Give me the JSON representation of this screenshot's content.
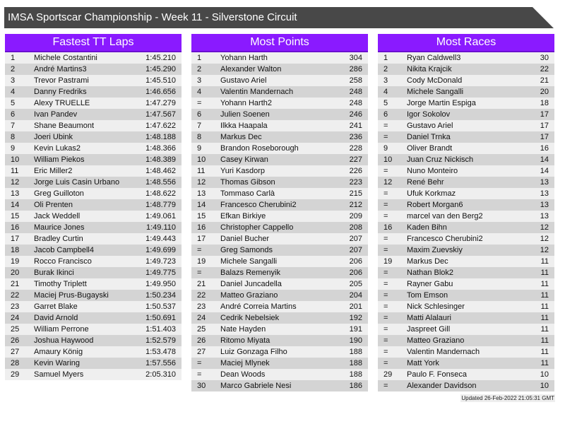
{
  "title": "IMSA Sportscar Championship - Week 11 - Silverstone Circuit",
  "colors": {
    "header": "#8a1aff",
    "title_bar": "#484848",
    "row_light": "#efefef",
    "row_dark": "#d4d4d4"
  },
  "tables": [
    {
      "heading": "Fastest TT Laps",
      "rows": [
        [
          "1",
          "Michele Costantini",
          "1:45.210"
        ],
        [
          "2",
          "André Martins3",
          "1:45.290"
        ],
        [
          "3",
          "Trevor Pastrami",
          "1:45.510"
        ],
        [
          "4",
          "Danny Fredriks",
          "1:46.656"
        ],
        [
          "5",
          "Alexy TRUELLE",
          "1:47.279"
        ],
        [
          "6",
          "Ivan Pandev",
          "1:47.567"
        ],
        [
          "7",
          "Shane Beaumont",
          "1:47.622"
        ],
        [
          "8",
          "Joeri Ubink",
          "1:48.188"
        ],
        [
          "9",
          "Kevin Lukas2",
          "1:48.366"
        ],
        [
          "10",
          "William Piekos",
          "1:48.389"
        ],
        [
          "11",
          "Eric Miller2",
          "1:48.462"
        ],
        [
          "12",
          "Jorge Luis Casin Urbano",
          "1:48.556"
        ],
        [
          "13",
          "Greg Guilloton",
          "1:48.622"
        ],
        [
          "14",
          "Oli Prenten",
          "1:48.779"
        ],
        [
          "15",
          "Jack Weddell",
          "1:49.061"
        ],
        [
          "16",
          "Maurice Jones",
          "1:49.110"
        ],
        [
          "17",
          "Bradley Curtin",
          "1:49.443"
        ],
        [
          "18",
          "Jacob Campbell4",
          "1:49.699"
        ],
        [
          "19",
          "Rocco Francisco",
          "1:49.723"
        ],
        [
          "20",
          "Burak Ikinci",
          "1:49.775"
        ],
        [
          "21",
          "Timothy Triplett",
          "1:49.950"
        ],
        [
          "22",
          "Maciej Prus-Bugayski",
          "1:50.234"
        ],
        [
          "23",
          "Garret Blake",
          "1:50.537"
        ],
        [
          "24",
          "David Arnold",
          "1:50.691"
        ],
        [
          "25",
          "William Perrone",
          "1:51.403"
        ],
        [
          "26",
          "Joshua Haywood",
          "1:52.579"
        ],
        [
          "27",
          "Amaury König",
          "1:53.478"
        ],
        [
          "28",
          "Kevin Waring",
          "1:57.556"
        ],
        [
          "29",
          "Samuel Myers",
          "2:05.310"
        ]
      ]
    },
    {
      "heading": "Most Points",
      "rows": [
        [
          "1",
          "Yohann Harth",
          "304"
        ],
        [
          "2",
          "Alexander Walton",
          "286"
        ],
        [
          "3",
          "Gustavo Ariel",
          "258"
        ],
        [
          "4",
          "Valentin Mandernach",
          "248"
        ],
        [
          "=",
          "Yohann Harth2",
          "248"
        ],
        [
          "6",
          "Julien Soenen",
          "246"
        ],
        [
          "7",
          "Ilkka Haapala",
          "241"
        ],
        [
          "8",
          "Markus Dec",
          "236"
        ],
        [
          "9",
          "Brandon Roseborough",
          "228"
        ],
        [
          "10",
          "Casey Kirwan",
          "227"
        ],
        [
          "11",
          "Yuri Kasdorp",
          "226"
        ],
        [
          "12",
          "Thomas Gibson",
          "223"
        ],
        [
          "13",
          "Tommaso Carlà",
          "215"
        ],
        [
          "14",
          "Francesco Cherubini2",
          "212"
        ],
        [
          "15",
          "Efkan Birkiye",
          "209"
        ],
        [
          "16",
          "Christopher Cappello",
          "208"
        ],
        [
          "17",
          "Daniel Bucher",
          "207"
        ],
        [
          "=",
          "Greg Samonds",
          "207"
        ],
        [
          "19",
          "Michele Sangalli",
          "206"
        ],
        [
          "=",
          "Balazs Remenyik",
          "206"
        ],
        [
          "21",
          "Daniel Juncadella",
          "205"
        ],
        [
          "22",
          "Matteo Graziano",
          "204"
        ],
        [
          "23",
          "André Correia Martins",
          "201"
        ],
        [
          "24",
          "Cedrik Nebelsiek",
          "192"
        ],
        [
          "25",
          "Nate Hayden",
          "191"
        ],
        [
          "26",
          "Ritomo Miyata",
          "190"
        ],
        [
          "27",
          "Luiz Gonzaga Filho",
          "188"
        ],
        [
          "=",
          "Maciej Mlynek",
          "188"
        ],
        [
          "=",
          "Dean Woods",
          "188"
        ],
        [
          "30",
          "Marco Gabriele Nesi",
          "186"
        ]
      ]
    },
    {
      "heading": "Most Races",
      "rows": [
        [
          "1",
          "Ryan Caldwell3",
          "30"
        ],
        [
          "2",
          "Nikita Krajcik",
          "22"
        ],
        [
          "3",
          "Cody McDonald",
          "21"
        ],
        [
          "4",
          "Michele Sangalli",
          "20"
        ],
        [
          "5",
          "Jorge Martin Espiga",
          "18"
        ],
        [
          "6",
          "Igor Sokolov",
          "17"
        ],
        [
          "=",
          "Gustavo Ariel",
          "17"
        ],
        [
          "=",
          "Daniel Trnka",
          "17"
        ],
        [
          "9",
          "Oliver Brandt",
          "16"
        ],
        [
          "10",
          "Juan Cruz Nickisch",
          "14"
        ],
        [
          "=",
          "Nuno Monteiro",
          "14"
        ],
        [
          "12",
          "René Behr",
          "13"
        ],
        [
          "=",
          "Ufuk Korkmaz",
          "13"
        ],
        [
          "=",
          "Robert Morgan6",
          "13"
        ],
        [
          "=",
          "marcel van den Berg2",
          "13"
        ],
        [
          "16",
          "Kaden Bihn",
          "12"
        ],
        [
          "=",
          "Francesco Cherubini2",
          "12"
        ],
        [
          "=",
          "Maxim Zuevskiy",
          "12"
        ],
        [
          "19",
          "Markus Dec",
          "11"
        ],
        [
          "=",
          "Nathan Blok2",
          "11"
        ],
        [
          "=",
          "Rayner Gabu",
          "11"
        ],
        [
          "=",
          "Tom Emson",
          "11"
        ],
        [
          "=",
          "Nick Schlesinger",
          "11"
        ],
        [
          "=",
          "Matti Alalauri",
          "11"
        ],
        [
          "=",
          "Jaspreet Gill",
          "11"
        ],
        [
          "=",
          "Matteo Graziano",
          "11"
        ],
        [
          "=",
          "Valentin Mandernach",
          "11"
        ],
        [
          "=",
          "Matt York",
          "11"
        ],
        [
          "29",
          "Paulo F. Fonseca",
          "10"
        ],
        [
          "=",
          "Alexander Davidson",
          "10"
        ]
      ]
    }
  ],
  "updated": "Updated 26-Feb-2022 21:05:31 GMT"
}
